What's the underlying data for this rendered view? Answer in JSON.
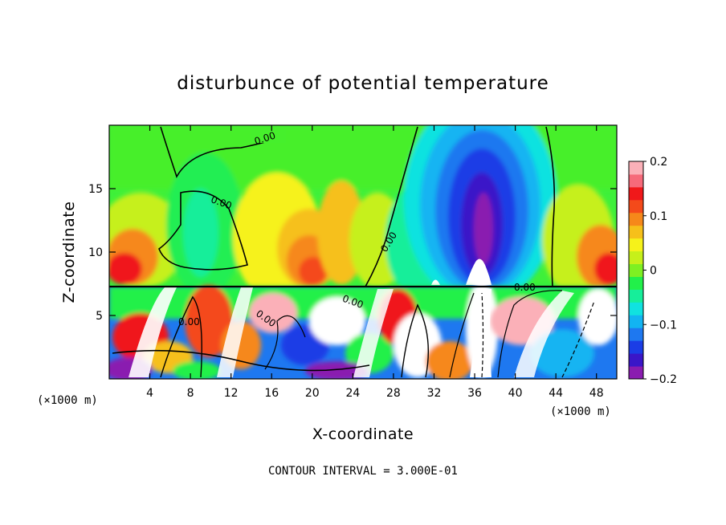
{
  "chart_data": {
    "type": "heatmap",
    "title": "disturbunce of potential temperature",
    "xlabel": "X-coordinate",
    "ylabel": "Z-coordinate",
    "x_unit": "(×1000 m)",
    "xlim": [
      0,
      50
    ],
    "ylim": [
      0,
      20
    ],
    "x_ticks": [
      4,
      8,
      12,
      16,
      20,
      24,
      28,
      32,
      36,
      40,
      44,
      48
    ],
    "y_ticks": [
      5,
      10,
      15
    ],
    "colorbar": {
      "range": [
        -0.2,
        0.2
      ],
      "ticks": [
        0.2,
        0.1,
        0,
        -0.1,
        -0.2
      ],
      "tick_labels": [
        "0.2",
        "0.1",
        "0",
        "−0.1",
        "−0.2"
      ],
      "colors": [
        "#8a1cb0",
        "#3a16c8",
        "#1b3de6",
        "#1e78f0",
        "#12b4f2",
        "#10e2e0",
        "#16ee9a",
        "#22f04a",
        "#7ef022",
        "#c6f01a",
        "#f6f21a",
        "#f6c01a",
        "#f6881a",
        "#f44a1a",
        "#f0181a",
        "#f66a7a",
        "#fbb0b8"
      ]
    },
    "contour_label": "0.00",
    "contour_interval_text": "CONTOUR INTERVAL = 3.000E-01",
    "features": [
      {
        "kind": "cold-anomaly",
        "x_center": 37,
        "z_center": 12.5,
        "min_value": -0.2
      },
      {
        "kind": "warm-band",
        "z_range": [
          8,
          12
        ],
        "value": 0.15
      },
      {
        "kind": "turbulent-layer",
        "z_range": [
          0,
          7.2
        ],
        "note": "strong fluctuations below z≈7"
      }
    ]
  }
}
